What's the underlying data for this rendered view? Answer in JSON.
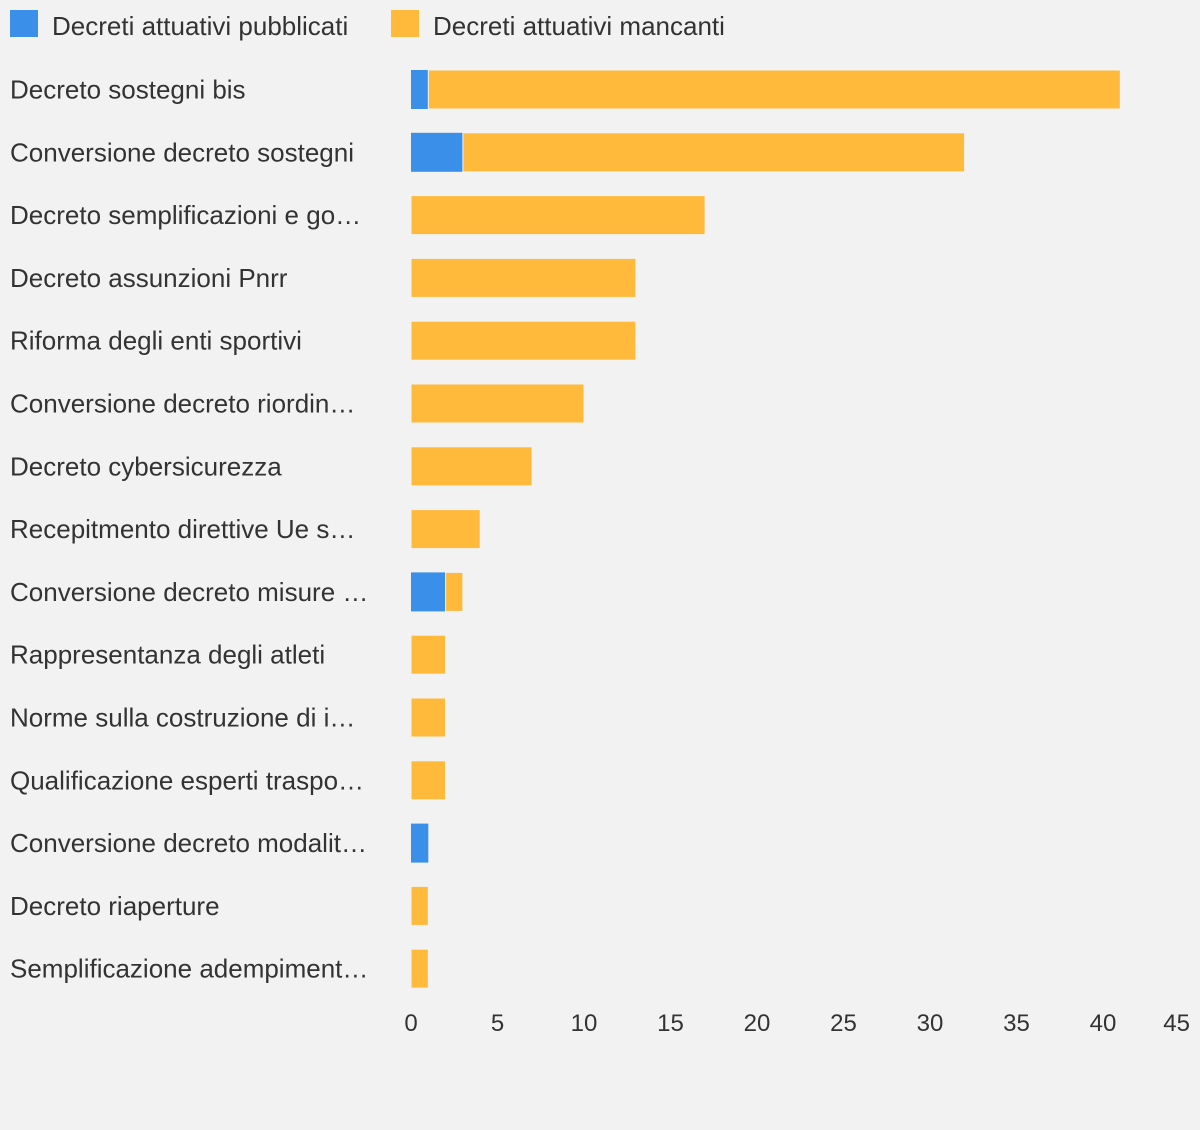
{
  "colors": {
    "background": "#f2f2f2",
    "published": "#3a90e8",
    "missing": "#ffb93b",
    "text": "#333333"
  },
  "legend": {
    "published_label": "Decreti attuativi pubblicati",
    "missing_label": "Decreti attuativi mancanti"
  },
  "chart_data": {
    "type": "bar",
    "orientation": "horizontal",
    "stacked": true,
    "legend_position": "top-left",
    "grid": false,
    "xlim": [
      0,
      45
    ],
    "x_ticks": [
      "0",
      "5",
      "10",
      "15",
      "20",
      "25",
      "30",
      "35",
      "40",
      "45"
    ],
    "categories": [
      "Decreto sostegni bis",
      "Conversione decreto sostegni",
      "Decreto semplificazioni e go…",
      "Decreto assunzioni Pnrr",
      "Riforma degli enti sportivi",
      "Conversione decreto riordin…",
      "Decreto cybersicurezza",
      "Recepitmento direttive Ue s…",
      "Conversione decreto misure …",
      "Rappresentanza degli atleti",
      "Norme sulla costruzione di i…",
      "Qualificazione esperti traspo…",
      "Conversione decreto modalit…",
      "Decreto riaperture",
      "Semplificazione adempiment…"
    ],
    "series": [
      {
        "name": "Decreti attuativi pubblicati",
        "color": "#3a90e8",
        "values": [
          1,
          3,
          0,
          0,
          0,
          0,
          0,
          0,
          2,
          0,
          0,
          0,
          1,
          0,
          0
        ]
      },
      {
        "name": "Decreti attuativi mancanti",
        "color": "#ffb93b",
        "values": [
          40,
          29,
          17,
          13,
          13,
          10,
          7,
          4,
          1,
          2,
          2,
          2,
          0,
          1,
          1
        ]
      }
    ]
  }
}
